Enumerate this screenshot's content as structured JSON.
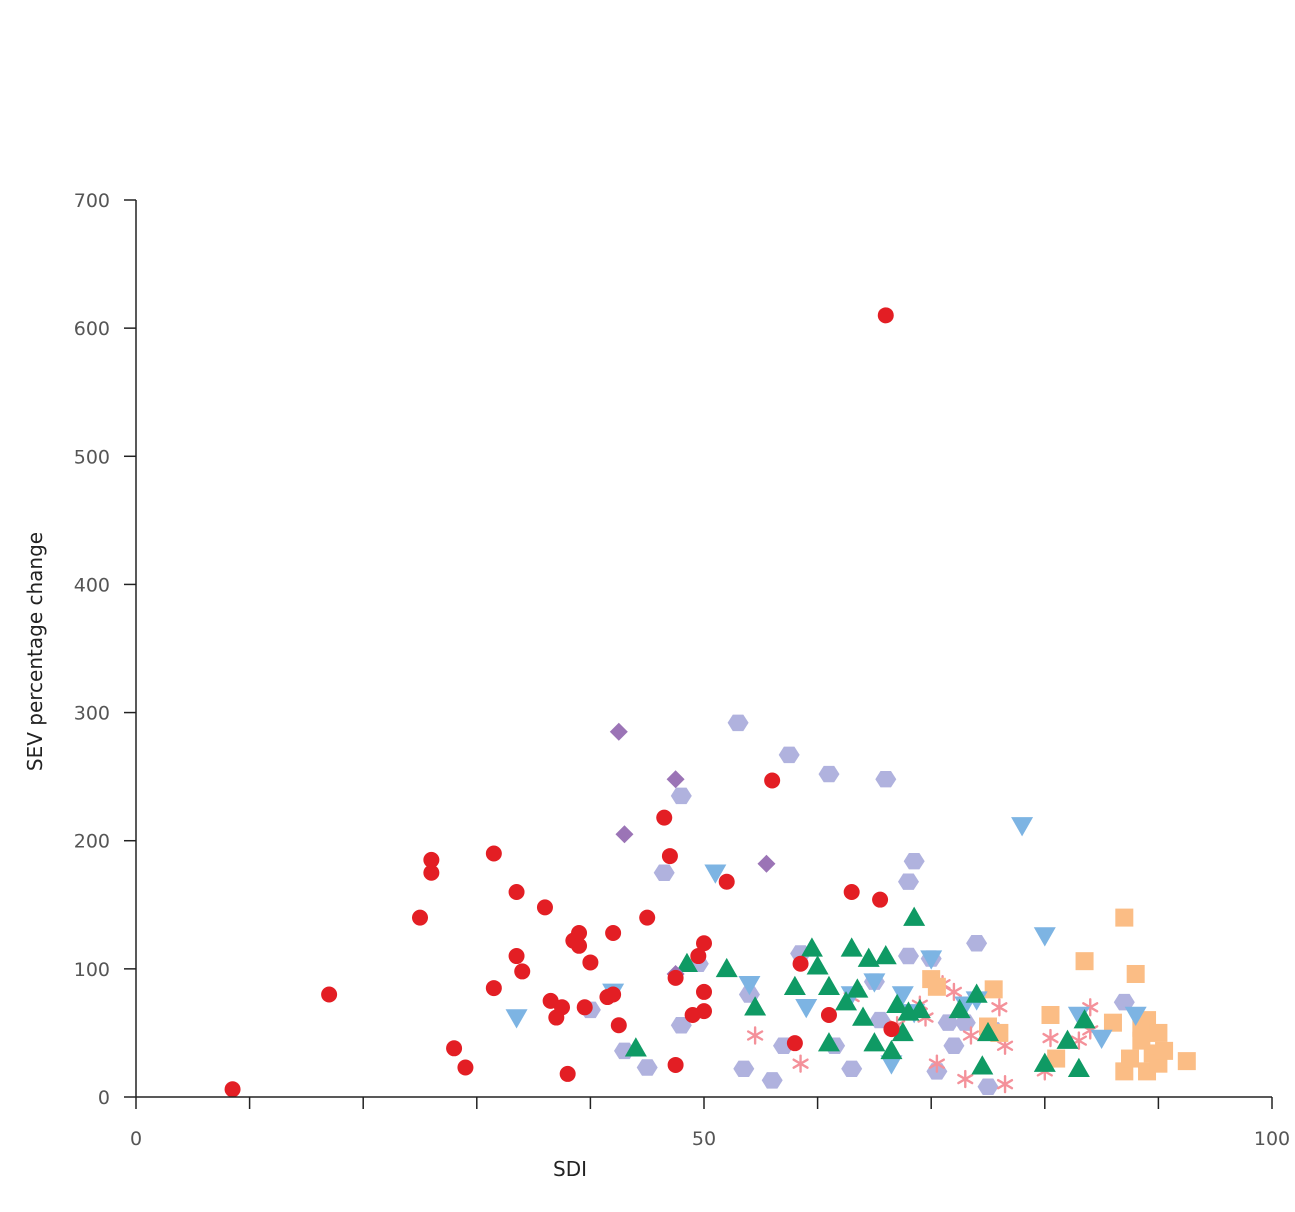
{
  "chart_data": {
    "type": "scatter",
    "title": "",
    "xlabel": "SDI",
    "ylabel": "SEV percentage change",
    "xlim": [
      0,
      100
    ],
    "ylim": [
      0,
      700
    ],
    "x_ticks": [
      0,
      10,
      20,
      30,
      40,
      50,
      60,
      70,
      80,
      90,
      100
    ],
    "x_tick_labels": [
      {
        "value": 0,
        "label": "0"
      },
      {
        "value": 50,
        "label": "50"
      },
      {
        "value": 100,
        "label": "100"
      }
    ],
    "y_ticks": [
      0,
      100,
      200,
      300,
      400,
      500,
      600,
      700
    ],
    "y_tick_labels": [
      "0",
      "100",
      "200",
      "300",
      "400",
      "500",
      "600",
      "700"
    ],
    "grid": false,
    "legend": "none",
    "series": [
      {
        "marker": "circle",
        "color": "#e31e24",
        "x": [
          8.5,
          17,
          25,
          26,
          26,
          28,
          29,
          31.5,
          31.5,
          33.5,
          33.5,
          34,
          36,
          36.5,
          37,
          37.5,
          38,
          38.5,
          39,
          39,
          39.5,
          40,
          41.5,
          42,
          42,
          42.5,
          45,
          46.5,
          47,
          47.5,
          47.5,
          49,
          49.5,
          50,
          50,
          50,
          52,
          56,
          58,
          58.5,
          61,
          63,
          65.5,
          66,
          66.5
        ],
        "y": [
          6,
          80,
          140,
          175,
          185,
          38,
          23,
          190,
          85,
          110,
          160,
          98,
          148,
          75,
          62,
          70,
          18,
          122,
          128,
          118,
          70,
          105,
          78,
          128,
          80,
          56,
          140,
          218,
          188,
          25,
          93,
          64,
          110,
          120,
          82,
          67,
          168,
          247,
          42,
          104,
          64,
          160,
          154,
          610,
          53
        ]
      },
      {
        "marker": "diamond",
        "color": "#9b74b6",
        "x": [
          42.5,
          43,
          47.5,
          47.5,
          55.5
        ],
        "y": [
          285,
          205,
          248,
          96,
          182
        ]
      },
      {
        "marker": "hexagon",
        "color": "#b0b2de",
        "x": [
          40,
          43,
          45,
          46.5,
          48,
          48,
          49.5,
          53,
          53.5,
          54,
          56,
          57,
          57.5,
          58.5,
          61,
          61.5,
          63,
          65,
          65.5,
          66,
          68,
          68,
          68.5,
          70,
          70.5,
          71.5,
          72,
          73,
          74,
          75,
          75.5,
          87
        ],
        "y": [
          68,
          36,
          23,
          175,
          235,
          56,
          104,
          292,
          22,
          80,
          13,
          40,
          267,
          112,
          252,
          40,
          22,
          90,
          60,
          248,
          168,
          110,
          184,
          108,
          20,
          58,
          40,
          58,
          120,
          8,
          52,
          74
        ],
        "size_note": ""
      },
      {
        "marker": "triangle-down",
        "color": "#7db4e3",
        "x": [
          33.5,
          42,
          51,
          54,
          59,
          63,
          65,
          66.5,
          67.5,
          68.5,
          70,
          73,
          74,
          78,
          80,
          83,
          85,
          88
        ],
        "y": [
          62,
          82,
          175,
          88,
          70,
          80,
          90,
          26,
          80,
          66,
          108,
          72,
          76,
          212,
          126,
          64,
          46,
          64
        ]
      },
      {
        "marker": "triangle-up",
        "color": "#0f9a64",
        "x": [
          44,
          48.5,
          52,
          54.5,
          58,
          59.5,
          60,
          61,
          61,
          62.5,
          63,
          63.5,
          64,
          64.5,
          65,
          66,
          66.5,
          67,
          67.5,
          68,
          68.5,
          69,
          72.5,
          74,
          74.5,
          75,
          80,
          82,
          83,
          83.5
        ],
        "y": [
          38,
          104,
          100,
          70,
          86,
          116,
          102,
          86,
          42,
          74,
          116,
          84,
          62,
          108,
          42,
          110,
          36,
          72,
          50,
          66,
          140,
          68,
          68,
          80,
          24,
          50,
          26,
          44,
          22,
          60
        ]
      },
      {
        "marker": "asterisk",
        "color": "#f4919a",
        "x": [
          54.5,
          58.5,
          63,
          67,
          69,
          69.5,
          70.5,
          71,
          72,
          73,
          73.5,
          76,
          76.5,
          76.5,
          80,
          80.5,
          83,
          84,
          84
        ],
        "y": [
          48,
          26,
          78,
          56,
          72,
          62,
          26,
          88,
          82,
          14,
          48,
          70,
          40,
          10,
          20,
          46,
          44,
          70,
          52
        ]
      },
      {
        "marker": "square",
        "color": "#fbbd85",
        "x": [
          70,
          70.5,
          75,
          75.5,
          76,
          80.5,
          81,
          83.5,
          86,
          87,
          87,
          88,
          88.5,
          89,
          89,
          89.5,
          90,
          90,
          90.5,
          92.5,
          88.5,
          87.5
        ],
        "y": [
          92,
          86,
          55,
          84,
          50,
          64,
          30,
          106,
          58,
          140,
          20,
          96,
          54,
          60,
          20,
          34,
          50,
          26,
          36,
          28,
          44,
          30
        ]
      }
    ]
  }
}
